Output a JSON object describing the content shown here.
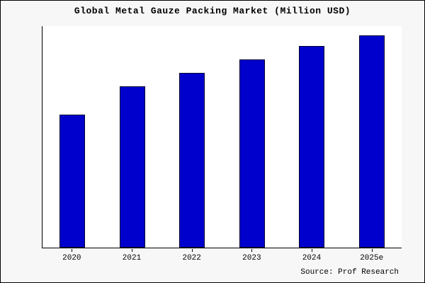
{
  "chart_data": {
    "type": "bar",
    "title": "Global Metal Gauze Packing Market (Million USD)",
    "categories": [
      "2020",
      "2021",
      "2022",
      "2023",
      "2024",
      "2025e"
    ],
    "values": [
      60,
      73,
      79,
      85,
      91,
      96
    ],
    "xlabel": "",
    "ylabel": "",
    "ylim": [
      0,
      100
    ],
    "grid": false,
    "legend_position": "none",
    "bar_color": "#0000CD",
    "bar_edge_color": "#000033"
  },
  "footer": {
    "source": "Source: Prof Research"
  }
}
